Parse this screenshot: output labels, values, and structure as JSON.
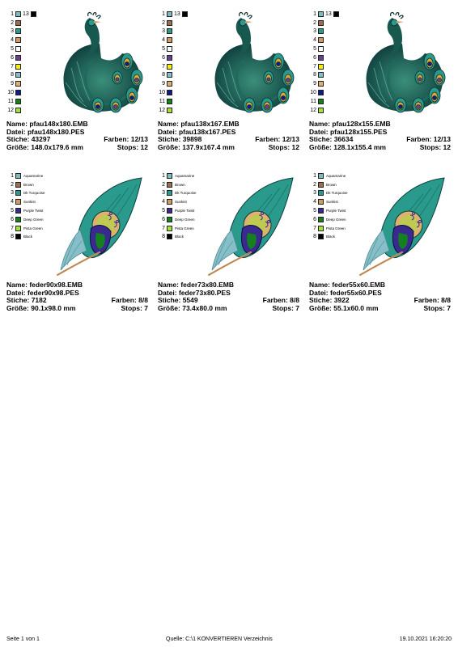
{
  "designs": [
    {
      "kind": "peacock",
      "name": "Name: pfau148x180.EMB",
      "file": "Datei: pfau148x180.PES",
      "stitches": "Stiche: 43297",
      "colors": "Farben: 12/13",
      "size": "Größe: 148.0x179.6 mm",
      "stops": "Stops: 12"
    },
    {
      "kind": "peacock",
      "name": "Name: pfau138x167.EMB",
      "file": "Datei: pfau138x167.PES",
      "stitches": "Stiche: 39898",
      "colors": "Farben: 12/13",
      "size": "Größe: 137.9x167.4 mm",
      "stops": "Stops: 12"
    },
    {
      "kind": "peacock",
      "name": "Name: pfau128x155.EMB",
      "file": "Datei: pfau128x155.PES",
      "stitches": "Stiche: 36634",
      "colors": "Farben: 12/13",
      "size": "Größe: 128.1x155.4 mm",
      "stops": "Stops: 12"
    },
    {
      "kind": "feather",
      "name": "Name: feder90x98.EMB",
      "file": "Datei: feder90x98.PES",
      "stitches": "Stiche: 7182",
      "colors": "Farben: 8/8",
      "size": "Größe: 90.1x98.0 mm",
      "stops": "Stops: 7"
    },
    {
      "kind": "feather",
      "name": "Name: feder73x80.EMB",
      "file": "Datei: feder73x80.PES",
      "stitches": "Stiche: 5549",
      "colors": "Farben: 8/8",
      "size": "Größe: 73.4x80.0 mm",
      "stops": "Stops: 7"
    },
    {
      "kind": "feather",
      "name": "Name: feder55x60.EMB",
      "file": "Datei: feder55x60.PES",
      "stitches": "Stiche: 3922",
      "colors": "Farben: 8/8",
      "size": "Größe: 55.1x60.0 mm",
      "stops": "Stops: 7"
    }
  ],
  "peacock_threads": [
    {
      "num": "1",
      "color": "#7fb9bf",
      "extra_num": "13",
      "extra_color": "#000000"
    },
    {
      "num": "2",
      "color": "#9a6f4f"
    },
    {
      "num": "3",
      "color": "#2a9a8c"
    },
    {
      "num": "4",
      "color": "#d29a62"
    },
    {
      "num": "5",
      "color": "#ffffff"
    },
    {
      "num": "6",
      "color": "#6a3f8f"
    },
    {
      "num": "7",
      "color": "#f4f000"
    },
    {
      "num": "8",
      "color": "#86bfc8"
    },
    {
      "num": "9",
      "color": "#e0b070"
    },
    {
      "num": "10",
      "color": "#101a8a"
    },
    {
      "num": "11",
      "color": "#14801e"
    },
    {
      "num": "12",
      "color": "#a6e03a"
    }
  ],
  "feather_threads": [
    {
      "num": "1",
      "color": "#7fb9bf",
      "label": "Aquamarine"
    },
    {
      "num": "2",
      "color": "#9a6f4f",
      "label": "Brown"
    },
    {
      "num": "3",
      "color": "#2a9a8c",
      "label": "Dk Turquoise"
    },
    {
      "num": "4",
      "color": "#d29a62",
      "label": "Sunkist"
    },
    {
      "num": "5",
      "color": "#3a2a90",
      "label": "Purple Twist"
    },
    {
      "num": "6",
      "color": "#14801e",
      "label": "Deep Green"
    },
    {
      "num": "7",
      "color": "#a6e03a",
      "label": "Pista Green"
    },
    {
      "num": "8",
      "color": "#000000",
      "label": "Black"
    }
  ],
  "footer": {
    "page": "Seite 1 von 1",
    "source": "Quelle: C:\\1 KONVERTIEREN Verzeichnis",
    "datetime": "19.10.2021 16:20:20"
  }
}
